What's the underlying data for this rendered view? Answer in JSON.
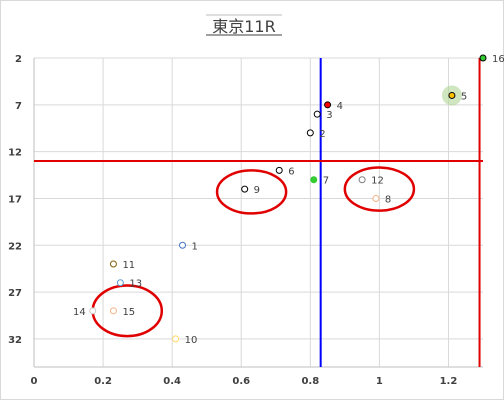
{
  "chart_data": {
    "type": "scatter",
    "title": "東京11R",
    "xlabel": "",
    "ylabel": "",
    "xlim": [
      0,
      1.3
    ],
    "ylim": [
      2,
      35
    ],
    "y_inverted": true,
    "x_ticks": [
      "0",
      "0.2",
      "0.4",
      "0.6",
      "0.8",
      "1",
      "1.2"
    ],
    "x_tick_values": [
      0,
      0.2,
      0.4,
      0.6,
      0.8,
      1.0,
      1.2
    ],
    "y_ticks": [
      "2",
      "7",
      "12",
      "17",
      "22",
      "27",
      "32"
    ],
    "y_tick_values": [
      2,
      7,
      12,
      17,
      22,
      27,
      32
    ],
    "grid": true,
    "points": [
      {
        "label": "1",
        "x": 0.43,
        "y": 22,
        "fill": "#ffffff",
        "stroke": "#4472c4",
        "label_side": "right"
      },
      {
        "label": "2",
        "x": 0.8,
        "y": 10,
        "fill": "#ffffff",
        "stroke": "#000000",
        "label_side": "right"
      },
      {
        "label": "3",
        "x": 0.82,
        "y": 8,
        "fill": "#ffffff",
        "stroke": "#000000",
        "label_side": "right"
      },
      {
        "label": "4",
        "x": 0.85,
        "y": 7,
        "fill": "#ff0000",
        "stroke": "#000000",
        "label_side": "right"
      },
      {
        "label": "5",
        "x": 1.21,
        "y": 6,
        "fill": "#ffc000",
        "stroke": "#000000",
        "label_side": "right",
        "glow": "#a9d18e"
      },
      {
        "label": "6",
        "x": 0.71,
        "y": 14,
        "fill": "#ffffff",
        "stroke": "#000000",
        "label_side": "right"
      },
      {
        "label": "7",
        "x": 0.81,
        "y": 15,
        "fill": "#33cc33",
        "stroke": "#33cc33",
        "label_side": "right"
      },
      {
        "label": "8",
        "x": 0.99,
        "y": 17,
        "fill": "#ffffff",
        "stroke": "#f4b183",
        "label_side": "right"
      },
      {
        "label": "9",
        "x": 0.61,
        "y": 16,
        "fill": "#ffffff",
        "stroke": "#000000",
        "label_side": "right"
      },
      {
        "label": "10",
        "x": 0.41,
        "y": 32,
        "fill": "#ffffff",
        "stroke": "#ffd966",
        "label_side": "right"
      },
      {
        "label": "11",
        "x": 0.23,
        "y": 24,
        "fill": "#ffffff",
        "stroke": "#7f6000",
        "label_side": "right"
      },
      {
        "label": "12",
        "x": 0.95,
        "y": 15,
        "fill": "#ffffff",
        "stroke": "#7f7f7f",
        "label_side": "right"
      },
      {
        "label": "13",
        "x": 0.25,
        "y": 26,
        "fill": "#ffffff",
        "stroke": "#5b9bd5",
        "label_side": "right"
      },
      {
        "label": "14",
        "x": 0.17,
        "y": 29,
        "fill": "#ffffff",
        "stroke": "#c9c9c9",
        "label_side": "left"
      },
      {
        "label": "15",
        "x": 0.23,
        "y": 29,
        "fill": "#ffffff",
        "stroke": "#f4b183",
        "label_side": "right"
      },
      {
        "label": "16",
        "x": 1.3,
        "y": 2,
        "fill": "#33cc33",
        "stroke": "#000000",
        "label_side": "right"
      }
    ],
    "reference_lines": [
      {
        "orientation": "vertical",
        "value": 0.83,
        "color": "#0000ff"
      },
      {
        "orientation": "horizontal",
        "value": 13,
        "color": "#e00000"
      },
      {
        "orientation": "vertical",
        "value": 1.29,
        "color": "#e00000"
      }
    ],
    "highlight_ellipses": [
      {
        "cx": 0.63,
        "cy": 16.3,
        "rx": 0.1,
        "ry": 2.3,
        "color": "#e00000"
      },
      {
        "cx": 1.0,
        "cy": 16.0,
        "rx": 0.1,
        "ry": 2.3,
        "color": "#e00000"
      },
      {
        "cx": 0.27,
        "cy": 29.0,
        "rx": 0.1,
        "ry": 2.7,
        "color": "#e00000"
      }
    ]
  }
}
